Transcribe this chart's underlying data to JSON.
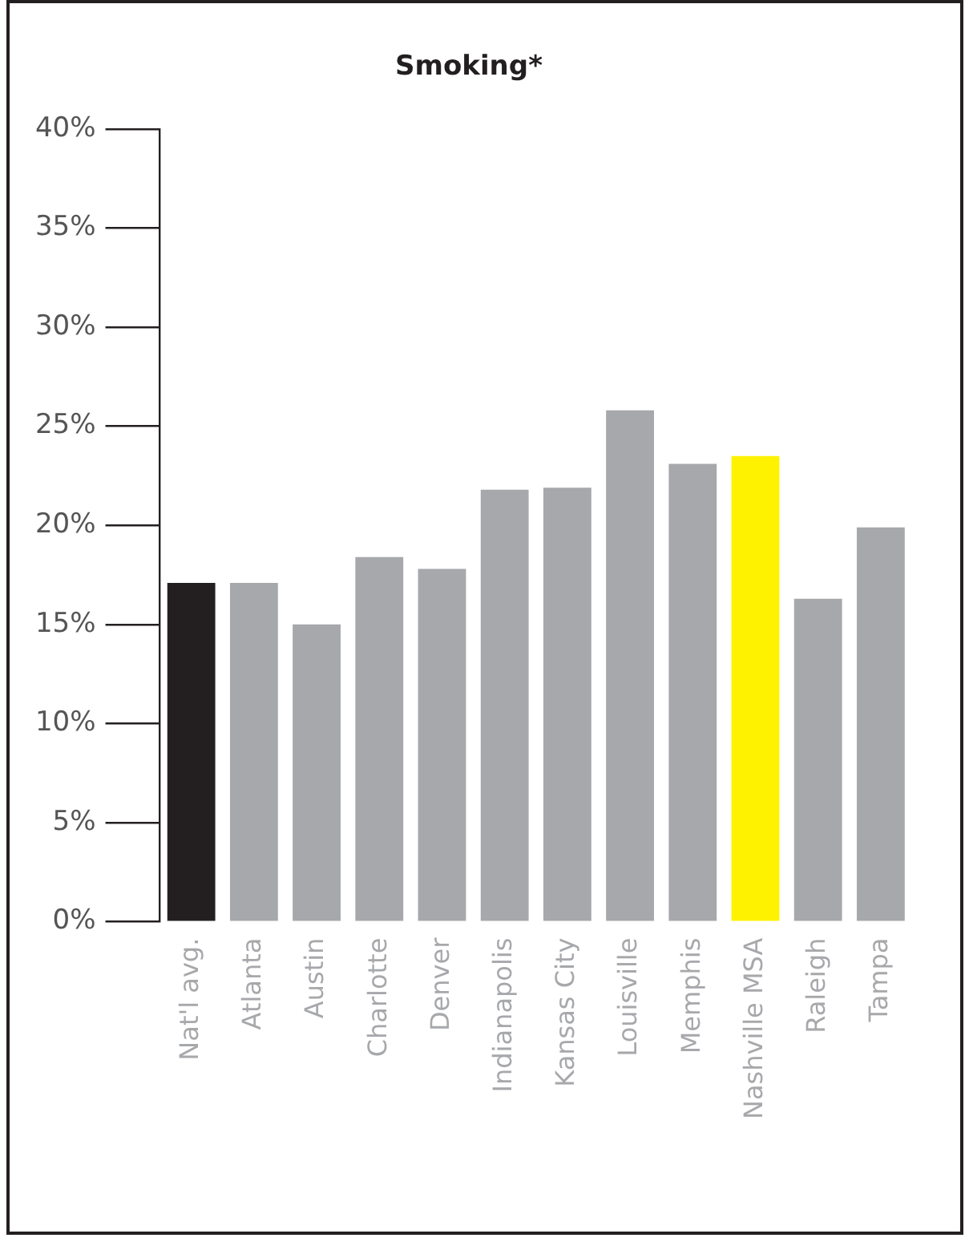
{
  "chart_data": {
    "type": "bar",
    "title": "Smoking*",
    "categories": [
      "Nat'l avg.",
      "Atlanta",
      "Austin",
      "Charlotte",
      "Denver",
      "Indianapolis",
      "Kansas City",
      "Louisville",
      "Memphis",
      "Nashville MSA",
      "Raleigh",
      "Tampa"
    ],
    "values": [
      17.1,
      17.1,
      15.0,
      18.4,
      17.8,
      21.8,
      21.9,
      25.8,
      23.1,
      23.5,
      16.3,
      19.9
    ],
    "colors": [
      "#231f20",
      "#a7a8ab",
      "#a7a8ab",
      "#a7a8ab",
      "#a7a8ab",
      "#a7a8ab",
      "#a7a8ab",
      "#a7a8ab",
      "#a7a8ab",
      "#fff200",
      "#a7a8ab",
      "#a7a8ab"
    ],
    "ylim": [
      0,
      40
    ],
    "yticks": [
      {
        "value": 0,
        "label": "0%"
      },
      {
        "value": 5,
        "label": "5%"
      },
      {
        "value": 10,
        "label": "10%"
      },
      {
        "value": 15,
        "label": "15%"
      },
      {
        "value": 20,
        "label": "20%"
      },
      {
        "value": 25,
        "label": "25%"
      },
      {
        "value": 30,
        "label": "30%"
      },
      {
        "value": 35,
        "label": "35%"
      },
      {
        "value": 40,
        "label": "40%"
      }
    ],
    "grid": false,
    "legend": false
  }
}
